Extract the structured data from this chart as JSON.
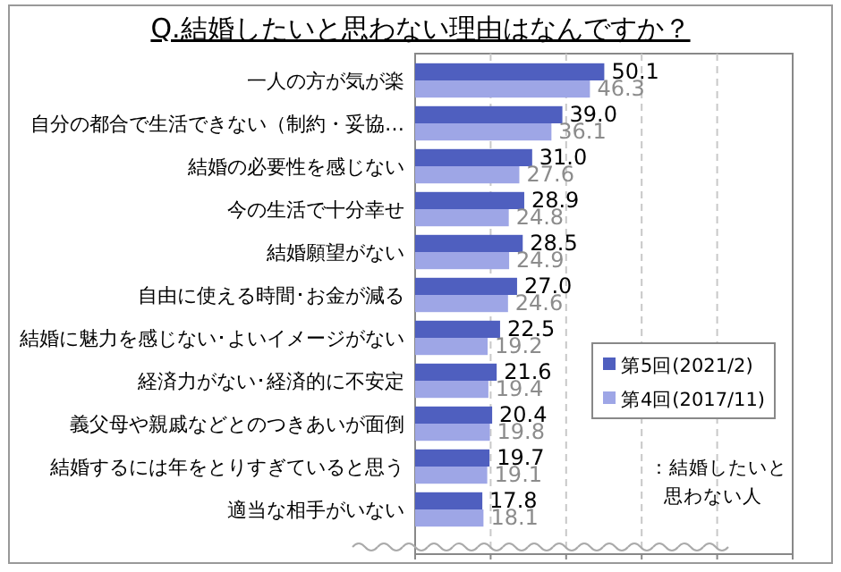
{
  "chart_data": {
    "type": "bar",
    "orientation": "horizontal",
    "title": "Q.結婚したいと思わない理由はなんですか？",
    "categories": [
      "一人の方が気が楽",
      "自分の都合で生活できない（制約・妥協…",
      "結婚の必要性を感じない",
      "今の生活で十分幸せ",
      "結婚願望がない",
      "自由に使える時間･お金が減る",
      "結婚に魅力を感じない･よいイメージがない",
      "経済力がない･経済的に不安定",
      "義父母や親戚などとのつきあいが面倒",
      "結婚するには年をとりすぎていると思う",
      "適当な相手がいない"
    ],
    "series": [
      {
        "name": "第5回(2021/2)",
        "color": "#4f5fbf",
        "values": [
          50.1,
          39.0,
          31.0,
          28.9,
          28.5,
          27.0,
          22.5,
          21.6,
          20.4,
          19.7,
          17.8
        ],
        "value_labels": [
          "50.1",
          "39.0",
          "31.0",
          "28.9",
          "28.5",
          "27.0",
          "22.5",
          "21.6",
          "20.4",
          "19.7",
          "17.8"
        ]
      },
      {
        "name": "第4回(2017/11)",
        "color": "#9ea6e6",
        "values": [
          46.3,
          36.1,
          27.6,
          24.8,
          24.9,
          24.6,
          19.2,
          19.4,
          19.8,
          19.1,
          18.1
        ],
        "value_labels": [
          "46.3",
          "36.1",
          "27.6",
          "24.8",
          "24.9",
          "24.6",
          "19.2",
          "19.4",
          "19.8",
          "19.1",
          "18.1"
        ]
      }
    ],
    "xlim": [
      0,
      100
    ],
    "xticks": [
      {
        "value": 0,
        "label": null
      },
      {
        "value": 20,
        "label": null
      },
      {
        "value": 40,
        "label": null
      },
      {
        "value": 60,
        "label": null
      },
      {
        "value": 80,
        "label": null
      },
      {
        "value": 100,
        "label": null
      }
    ],
    "grid": "x",
    "legend": "right",
    "annotations": [
      "：結婚したいと思わない人"
    ]
  }
}
